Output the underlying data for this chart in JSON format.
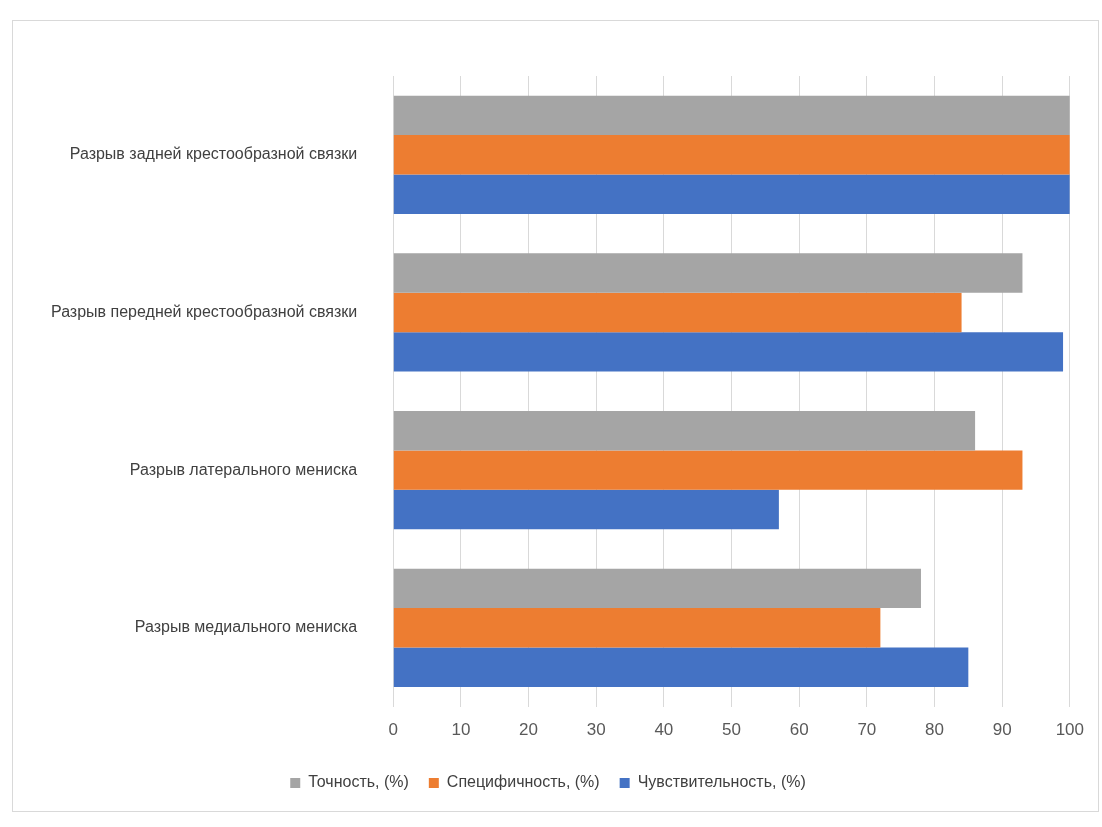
{
  "chart_data": {
    "type": "bar",
    "orientation": "horizontal",
    "categories": [
      "Разрыв задней крестообразной связки",
      "Разрыв передней крестообразной связки",
      "Разрыв латерального мениска",
      "Разрыв медиального мениска"
    ],
    "series": [
      {
        "name": "Точность, (%)",
        "color": "#a5a5a5",
        "values": [
          100,
          93,
          86,
          78
        ]
      },
      {
        "name": "Специфичность, (%)",
        "color": "#ed7d31",
        "values": [
          100,
          84,
          93,
          72
        ]
      },
      {
        "name": "Чувствительность, (%)",
        "color": "#4472c4",
        "values": [
          100,
          99,
          57,
          85
        ]
      }
    ],
    "xlim": [
      0,
      100
    ],
    "xticks": [
      0,
      10,
      20,
      30,
      40,
      50,
      60,
      70,
      80,
      90,
      100
    ],
    "grid": "x",
    "legend": "bottom"
  }
}
